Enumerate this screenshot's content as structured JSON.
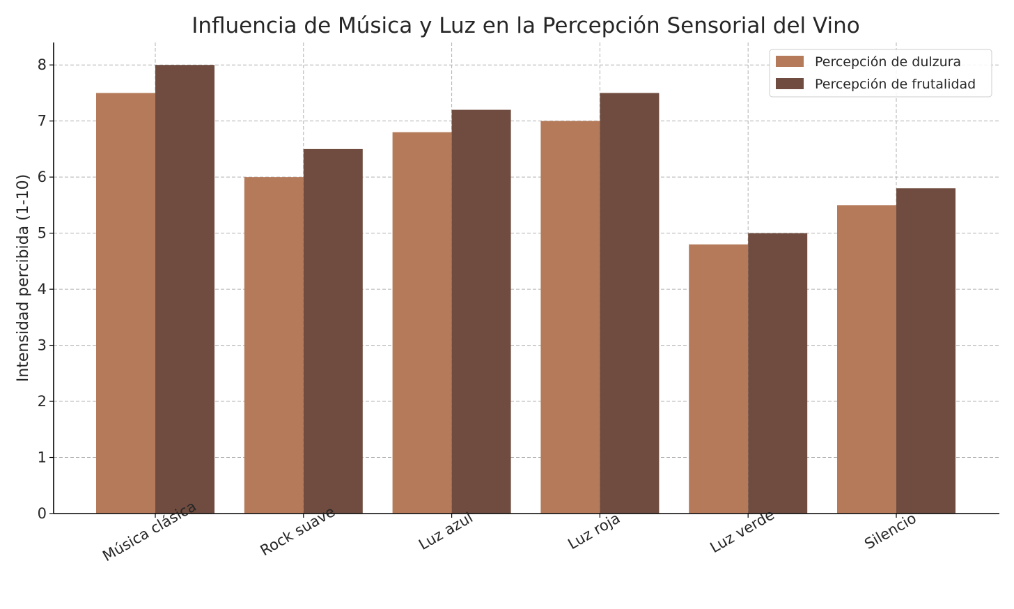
{
  "chart_data": {
    "type": "bar",
    "title": "Influencia de Música y Luz en la Percepción Sensorial del Vino",
    "xlabel": "",
    "ylabel": "Intensidad percibida (1-10)",
    "categories": [
      "Música clásica",
      "Rock suave",
      "Luz azul",
      "Luz roja",
      "Luz verde",
      "Silencio"
    ],
    "series": [
      {
        "name": "Percepción de dulzura",
        "color": "#b57a5a",
        "values": [
          7.5,
          6.0,
          6.8,
          7.0,
          4.8,
          5.5
        ]
      },
      {
        "name": "Percepción de frutalidad",
        "color": "#6f4c3f",
        "values": [
          8.0,
          6.5,
          7.2,
          7.5,
          5.0,
          5.8
        ]
      }
    ],
    "ylim": [
      0,
      8.4
    ],
    "yticks": [
      0,
      1,
      2,
      3,
      4,
      5,
      6,
      7,
      8
    ],
    "grid": true,
    "legend_position": "top-right"
  }
}
